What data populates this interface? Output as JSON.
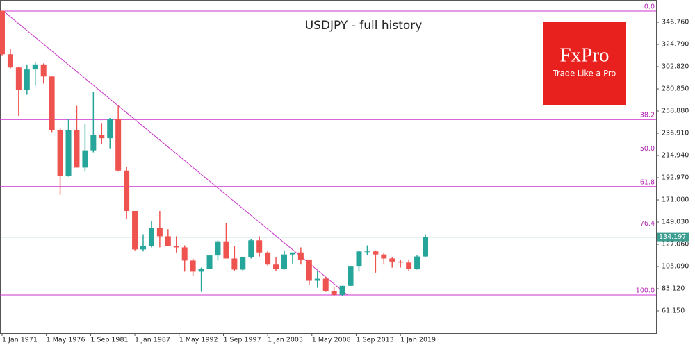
{
  "chart_data": {
    "type": "candlestick",
    "title": "USDJPY - full history",
    "logo": {
      "name": "FxPro",
      "tagline": "Trade Like a Pro"
    },
    "x": [
      1971,
      1972,
      1973,
      1974,
      1975,
      1976,
      1977,
      1978,
      1979,
      1980,
      1981,
      1982,
      1983,
      1984,
      1985,
      1986,
      1987,
      1988,
      1989,
      1990,
      1991,
      1992,
      1993,
      1994,
      1995,
      1996,
      1997,
      1998,
      1999,
      2000,
      2001,
      2002,
      2003,
      2004,
      2005,
      2006,
      2007,
      2008,
      2009,
      2010,
      2011,
      2012,
      2013,
      2014,
      2015,
      2016,
      2017,
      2018,
      2019,
      2020,
      2021,
      2022
    ],
    "open": [
      358,
      315,
      302,
      280,
      300,
      305,
      293,
      240,
      195,
      240,
      203,
      220,
      235,
      232,
      251,
      200,
      160,
      122,
      125,
      143,
      135,
      125,
      124,
      111,
      100,
      103,
      116,
      130,
      113,
      102,
      114,
      131,
      119,
      107,
      103,
      117,
      119,
      112,
      91,
      93,
      81,
      77,
      86,
      105,
      120,
      120,
      117,
      113,
      110,
      109,
      103,
      115
    ],
    "high": [
      358,
      320,
      303,
      305,
      307,
      306,
      293,
      242,
      251,
      264,
      246,
      278,
      247,
      252,
      264,
      204,
      160,
      137,
      150,
      160,
      142,
      135,
      126,
      113,
      104,
      116,
      131,
      148,
      125,
      115,
      132,
      135,
      121,
      114,
      121,
      119,
      124,
      112,
      101,
      95,
      85,
      86,
      105,
      121,
      126,
      121,
      119,
      114,
      112,
      112,
      116,
      137
    ],
    "low": [
      314,
      301,
      254,
      275,
      284,
      286,
      238,
      176,
      194,
      203,
      199,
      218,
      226,
      222,
      199,
      152,
      121,
      120,
      124,
      124,
      125,
      119,
      100,
      96,
      80,
      103,
      111,
      113,
      101,
      101,
      113,
      115,
      106,
      101,
      102,
      108,
      107,
      87,
      84,
      80,
      75.5,
      76,
      86,
      100,
      116,
      99,
      107,
      104,
      104,
      101,
      102,
      114
    ],
    "close": [
      315,
      302,
      280,
      300,
      305,
      293,
      240,
      195,
      240,
      203,
      220,
      235,
      232,
      251,
      200,
      160,
      122,
      125,
      143,
      135,
      125,
      124,
      111,
      100,
      103,
      116,
      130,
      113,
      102,
      114,
      131,
      119,
      107,
      103,
      117,
      119,
      112,
      91,
      93,
      81,
      77,
      86,
      105,
      120,
      120,
      117,
      113,
      110,
      109,
      103,
      115,
      134.197
    ],
    "up_color": "#26a69a",
    "down_color": "#ef5350",
    "fib_color": "#cc33cc",
    "fib_levels": [
      {
        "value": 357.75,
        "label": "0.0"
      },
      {
        "value": 250.48,
        "label": "38.2"
      },
      {
        "value": 217.34,
        "label": "50.0"
      },
      {
        "value": 184.2,
        "label": "61.8"
      },
      {
        "value": 143.2,
        "label": "76.4"
      },
      {
        "value": 76.93,
        "label": "100.0"
      }
    ],
    "current_price": 134.197,
    "current_color": "#3a9d8f",
    "xlim": [
      1970.75,
      2049.8
    ],
    "ylim": [
      39.18,
      368.73
    ],
    "xticks": [
      {
        "value": 1971.0,
        "label": "1 Jan 1971"
      },
      {
        "value": 1976.33,
        "label": "1 May 1976"
      },
      {
        "value": 1981.67,
        "label": "1 Sep 1981"
      },
      {
        "value": 1987.0,
        "label": "1 Jan 1987"
      },
      {
        "value": 1992.33,
        "label": "1 May 1992"
      },
      {
        "value": 1997.67,
        "label": "1 Sep 1997"
      },
      {
        "value": 2003.0,
        "label": "1 Jan 2003"
      },
      {
        "value": 2008.33,
        "label": "1 May 2008"
      },
      {
        "value": 2013.67,
        "label": "1 Sep 2013"
      },
      {
        "value": 2019.0,
        "label": "1 Jan 2019"
      }
    ],
    "yticks": [
      {
        "value": 61.15,
        "label": "61.150"
      },
      {
        "value": 83.12,
        "label": "83.120"
      },
      {
        "value": 105.09,
        "label": "105.090"
      },
      {
        "value": 127.06,
        "label": "127.060"
      },
      {
        "value": 149.03,
        "label": "149.030"
      },
      {
        "value": 171.0,
        "label": "171.000"
      },
      {
        "value": 192.97,
        "label": "192.970"
      },
      {
        "value": 214.94,
        "label": "214.940"
      },
      {
        "value": 236.91,
        "label": "236.910"
      },
      {
        "value": 258.88,
        "label": "258.880"
      },
      {
        "value": 280.85,
        "label": "280.850"
      },
      {
        "value": 302.82,
        "label": "302.820"
      },
      {
        "value": 324.79,
        "label": "324.790"
      },
      {
        "value": 346.76,
        "label": "346.760"
      }
    ]
  }
}
